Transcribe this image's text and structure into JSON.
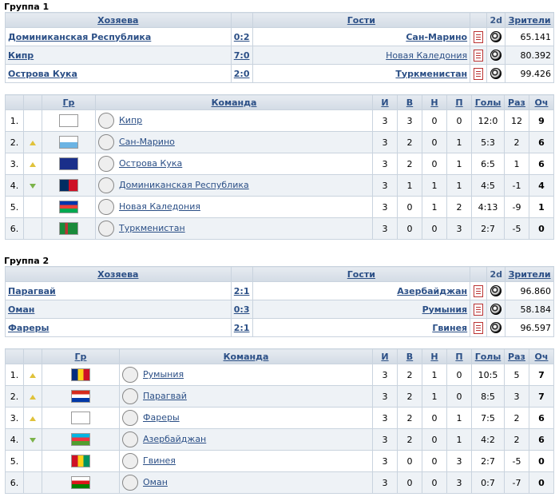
{
  "groups": [
    {
      "title": "Группа 1",
      "match_headers": {
        "home": "Хозяева",
        "away": "Гости",
        "d2": "2d",
        "spect": "Зрители"
      },
      "matches": [
        {
          "home": "Доминиканская Республика",
          "score": "0:2",
          "away": "Сан-Марино",
          "away_bold": true,
          "spect": "65.141"
        },
        {
          "home": "Кипр",
          "score": "7:0",
          "away": "Новая Каледония",
          "away_bold": false,
          "spect": "80.392"
        },
        {
          "home": "Острова Кука",
          "score": "2:0",
          "away": "Туркменистан",
          "away_bold": true,
          "spect": "99.426"
        }
      ],
      "standing_headers": {
        "gr": "Гр",
        "team": "Команда",
        "i": "И",
        "w": "В",
        "d": "Н",
        "l": "П",
        "goals": "Голы",
        "diff": "Раз",
        "pts": "Оч"
      },
      "rows": [
        {
          "pos": "1.",
          "arrow": "",
          "team": "Кипр",
          "i": "3",
          "w": "3",
          "d": "0",
          "l": "0",
          "goals": "12:0",
          "diff": "12",
          "pts": "9",
          "flag": "cyprus"
        },
        {
          "pos": "2.",
          "arrow": "up",
          "team": "Сан-Марино",
          "i": "3",
          "w": "2",
          "d": "0",
          "l": "1",
          "goals": "5:3",
          "diff": "2",
          "pts": "6",
          "flag": "sanmarino"
        },
        {
          "pos": "3.",
          "arrow": "up",
          "team": "Острова Кука",
          "i": "3",
          "w": "2",
          "d": "0",
          "l": "1",
          "goals": "6:5",
          "diff": "1",
          "pts": "6",
          "flag": "cook"
        },
        {
          "pos": "4.",
          "arrow": "down",
          "team": "Доминиканская Республика",
          "i": "3",
          "w": "1",
          "d": "1",
          "l": "1",
          "goals": "4:5",
          "diff": "-1",
          "pts": "4",
          "flag": "dominican"
        },
        {
          "pos": "5.",
          "arrow": "",
          "team": "Новая Каледония",
          "i": "3",
          "w": "0",
          "d": "1",
          "l": "2",
          "goals": "4:13",
          "diff": "-9",
          "pts": "1",
          "flag": "newcal"
        },
        {
          "pos": "6.",
          "arrow": "",
          "team": "Туркменистан",
          "i": "3",
          "w": "0",
          "d": "0",
          "l": "3",
          "goals": "2:7",
          "diff": "-5",
          "pts": "0",
          "flag": "turkmen"
        }
      ]
    },
    {
      "title": "Группа 2",
      "match_headers": {
        "home": "Хозяева",
        "away": "Гости",
        "d2": "2d",
        "spect": "Зрители"
      },
      "matches": [
        {
          "home": "Парагвай",
          "score": "2:1",
          "away": "Азербайджан",
          "away_bold": true,
          "spect": "96.860"
        },
        {
          "home": "Оман",
          "score": "0:3",
          "away": "Румыния",
          "away_bold": true,
          "spect": "58.184"
        },
        {
          "home": "Фареры",
          "score": "2:1",
          "away": "Гвинея",
          "away_bold": true,
          "spect": "96.597"
        }
      ],
      "standing_headers": {
        "gr": "Гр",
        "team": "Команда",
        "i": "И",
        "w": "В",
        "d": "Н",
        "l": "П",
        "goals": "Голы",
        "diff": "Раз",
        "pts": "Оч"
      },
      "rows": [
        {
          "pos": "1.",
          "arrow": "up",
          "team": "Румыния",
          "i": "3",
          "w": "2",
          "d": "1",
          "l": "0",
          "goals": "10:5",
          "diff": "5",
          "pts": "7",
          "flag": "romania"
        },
        {
          "pos": "2.",
          "arrow": "up",
          "team": "Парагвай",
          "i": "3",
          "w": "2",
          "d": "1",
          "l": "0",
          "goals": "8:5",
          "diff": "3",
          "pts": "7",
          "flag": "paraguay"
        },
        {
          "pos": "3.",
          "arrow": "up",
          "team": "Фареры",
          "i": "3",
          "w": "2",
          "d": "0",
          "l": "1",
          "goals": "7:5",
          "diff": "2",
          "pts": "6",
          "flag": "faroe"
        },
        {
          "pos": "4.",
          "arrow": "down",
          "team": "Азербайджан",
          "i": "3",
          "w": "2",
          "d": "0",
          "l": "1",
          "goals": "4:2",
          "diff": "2",
          "pts": "6",
          "flag": "azer"
        },
        {
          "pos": "5.",
          "arrow": "",
          "team": "Гвинея",
          "i": "3",
          "w": "0",
          "d": "0",
          "l": "3",
          "goals": "2:7",
          "diff": "-5",
          "pts": "0",
          "flag": "guinea"
        },
        {
          "pos": "6.",
          "arrow": "",
          "team": "Оман",
          "i": "3",
          "w": "0",
          "d": "0",
          "l": "3",
          "goals": "0:7",
          "diff": "-7",
          "pts": "0",
          "flag": "oman"
        }
      ]
    }
  ]
}
